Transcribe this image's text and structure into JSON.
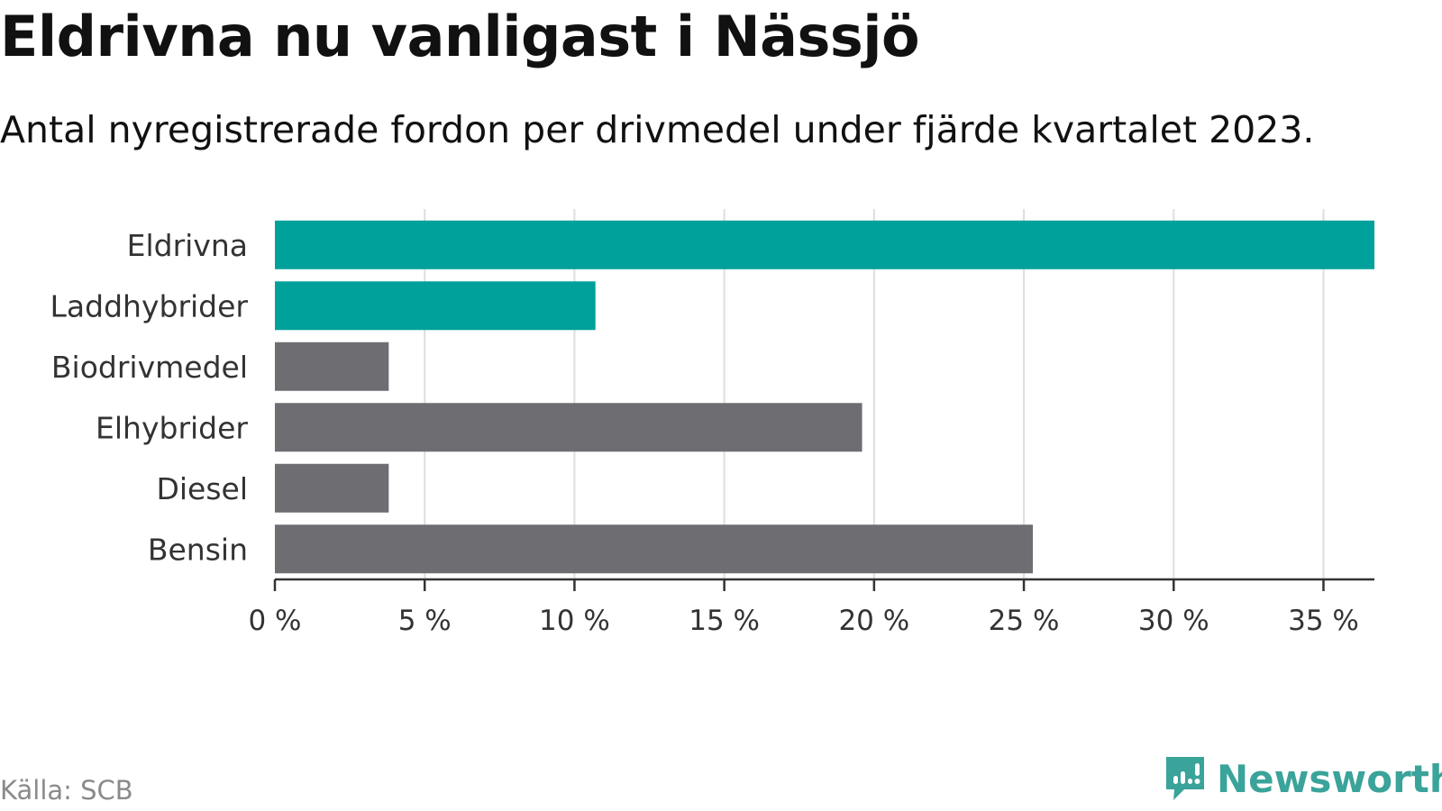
{
  "title": "Eldrivna nu vanligast i Nässjö",
  "subtitle": "Antal nyregistrerade fordon per drivmedel under fjärde kvartalet 2023.",
  "source": "Källa: SCB",
  "brand": {
    "name": "Newsworthy",
    "icon": "newsworthy-logo-icon"
  },
  "colors": {
    "highlight": "#00a19a",
    "default": "#6e6d72",
    "grid": "#dedede",
    "axis": "#333333"
  },
  "chart_data": {
    "type": "bar",
    "orientation": "horizontal",
    "categories": [
      "Eldrivna",
      "Laddhybrider",
      "Biodrivmedel",
      "Elhybrider",
      "Diesel",
      "Bensin"
    ],
    "values": [
      36.7,
      10.7,
      3.8,
      19.6,
      3.8,
      25.3
    ],
    "highlighted": [
      true,
      true,
      false,
      false,
      false,
      false
    ],
    "xlim": [
      0,
      36.7
    ],
    "xticks": [
      0,
      5,
      10,
      15,
      20,
      25,
      30,
      35
    ],
    "xtick_labels": [
      "0 %",
      "5 %",
      "10 %",
      "15 %",
      "20 %",
      "25 %",
      "30 %",
      "35 %"
    ],
    "unit": "%",
    "grid": true
  }
}
